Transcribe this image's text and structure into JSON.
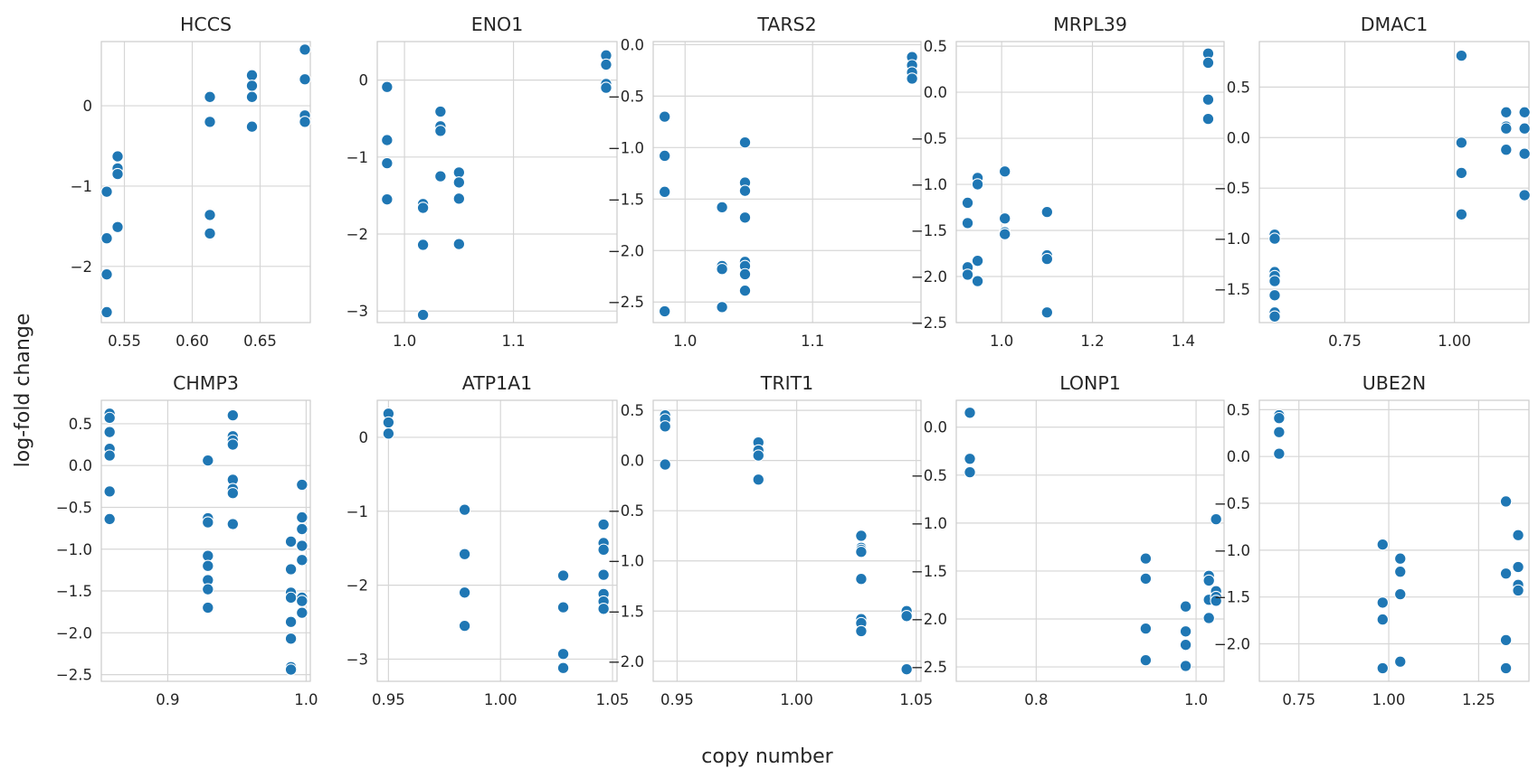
{
  "figure": {
    "xlabel": "copy number",
    "ylabel": "log-fold change"
  },
  "chart_data": [
    {
      "type": "scatter",
      "title": "HCCS",
      "xlim": [
        0.533,
        0.687
      ],
      "ylim": [
        -2.7,
        0.8
      ],
      "xticks": [
        {
          "v": 0.55,
          "label": "0.55"
        },
        {
          "v": 0.6,
          "label": "0.60"
        },
        {
          "v": 0.65,
          "label": "0.65"
        }
      ],
      "yticks": [
        {
          "v": -2,
          "label": "−2"
        },
        {
          "v": -1,
          "label": "−1"
        },
        {
          "v": 0,
          "label": "0"
        }
      ],
      "points": [
        [
          0.537,
          -1.07
        ],
        [
          0.537,
          -1.65
        ],
        [
          0.537,
          -2.1
        ],
        [
          0.537,
          -2.57
        ],
        [
          0.545,
          -0.63
        ],
        [
          0.545,
          -0.78
        ],
        [
          0.545,
          -0.85
        ],
        [
          0.545,
          -1.51
        ],
        [
          0.613,
          0.11
        ],
        [
          0.613,
          -0.2
        ],
        [
          0.613,
          -1.36
        ],
        [
          0.613,
          -1.59
        ],
        [
          0.644,
          0.38
        ],
        [
          0.644,
          0.25
        ],
        [
          0.644,
          0.11
        ],
        [
          0.644,
          -0.26
        ],
        [
          0.683,
          0.7
        ],
        [
          0.683,
          0.33
        ],
        [
          0.683,
          -0.12
        ],
        [
          0.683,
          -0.2
        ]
      ]
    },
    {
      "type": "scatter",
      "title": "ENO1",
      "xlim": [
        0.975,
        1.195
      ],
      "ylim": [
        -3.15,
        0.5
      ],
      "xticks": [
        {
          "v": 1.0,
          "label": "1.0"
        },
        {
          "v": 1.1,
          "label": "1.1"
        }
      ],
      "yticks": [
        {
          "v": -3,
          "label": "−3"
        },
        {
          "v": -2,
          "label": "−2"
        },
        {
          "v": -1,
          "label": "−1"
        },
        {
          "v": 0,
          "label": "0"
        }
      ],
      "points": [
        [
          0.984,
          -0.09
        ],
        [
          0.984,
          -0.78
        ],
        [
          0.984,
          -1.08
        ],
        [
          0.984,
          -1.55
        ],
        [
          1.017,
          -1.61
        ],
        [
          1.017,
          -1.66
        ],
        [
          1.017,
          -2.14
        ],
        [
          1.017,
          -3.05
        ],
        [
          1.033,
          -0.41
        ],
        [
          1.033,
          -0.6
        ],
        [
          1.033,
          -0.66
        ],
        [
          1.033,
          -1.25
        ],
        [
          1.05,
          -1.2
        ],
        [
          1.05,
          -1.33
        ],
        [
          1.05,
          -1.54
        ],
        [
          1.05,
          -2.13
        ],
        [
          1.185,
          0.32
        ],
        [
          1.185,
          0.2
        ],
        [
          1.185,
          -0.05
        ],
        [
          1.185,
          -0.1
        ]
      ]
    },
    {
      "type": "scatter",
      "title": "TARS2",
      "xlim": [
        0.975,
        1.185
      ],
      "ylim": [
        -2.7,
        0.03
      ],
      "xticks": [
        {
          "v": 1.0,
          "label": "1.0"
        },
        {
          "v": 1.1,
          "label": "1.1"
        }
      ],
      "yticks": [
        {
          "v": -2.5,
          "label": "−2.5"
        },
        {
          "v": -2.0,
          "label": "−2.0"
        },
        {
          "v": -1.5,
          "label": "−1.5"
        },
        {
          "v": -1.0,
          "label": "−1.0"
        },
        {
          "v": -0.5,
          "label": "−0.5"
        },
        {
          "v": 0.0,
          "label": "0.0"
        }
      ],
      "points": [
        [
          0.984,
          -0.7
        ],
        [
          0.984,
          -1.08
        ],
        [
          0.984,
          -1.43
        ],
        [
          0.984,
          -2.59
        ],
        [
          1.029,
          -1.58
        ],
        [
          1.029,
          -2.15
        ],
        [
          1.029,
          -2.18
        ],
        [
          1.029,
          -2.55
        ],
        [
          1.047,
          -0.95
        ],
        [
          1.047,
          -1.34
        ],
        [
          1.047,
          -1.42
        ],
        [
          1.047,
          -1.68
        ],
        [
          1.047,
          -2.11
        ],
        [
          1.047,
          -2.15
        ],
        [
          1.047,
          -2.23
        ],
        [
          1.047,
          -2.39
        ],
        [
          1.178,
          -0.12
        ],
        [
          1.178,
          -0.2
        ],
        [
          1.178,
          -0.27
        ],
        [
          1.178,
          -0.33
        ]
      ]
    },
    {
      "type": "scatter",
      "title": "MRPL39",
      "xlim": [
        0.9,
        1.49
      ],
      "ylim": [
        -2.5,
        0.55
      ],
      "xticks": [
        {
          "v": 1.0,
          "label": "1.0"
        },
        {
          "v": 1.2,
          "label": "1.2"
        },
        {
          "v": 1.4,
          "label": "1.4"
        }
      ],
      "yticks": [
        {
          "v": -2.5,
          "label": "−2.5"
        },
        {
          "v": -2.0,
          "label": "−2.0"
        },
        {
          "v": -1.5,
          "label": "−1.5"
        },
        {
          "v": -1.0,
          "label": "−1.0"
        },
        {
          "v": -0.5,
          "label": "−0.5"
        },
        {
          "v": 0.0,
          "label": "0.0"
        },
        {
          "v": 0.5,
          "label": "0.5"
        }
      ],
      "points": [
        [
          0.925,
          -1.2
        ],
        [
          0.925,
          -1.42
        ],
        [
          0.925,
          -1.9
        ],
        [
          0.925,
          -1.98
        ],
        [
          0.947,
          -0.93
        ],
        [
          0.947,
          -1.0
        ],
        [
          0.947,
          -1.83
        ],
        [
          0.947,
          -2.05
        ],
        [
          1.007,
          -0.86
        ],
        [
          1.007,
          -1.37
        ],
        [
          1.007,
          -1.52
        ],
        [
          1.007,
          -1.54
        ],
        [
          1.1,
          -1.3
        ],
        [
          1.1,
          -1.77
        ],
        [
          1.1,
          -1.81
        ],
        [
          1.1,
          -2.39
        ],
        [
          1.455,
          0.42
        ],
        [
          1.455,
          0.32
        ],
        [
          1.455,
          -0.08
        ],
        [
          1.455,
          -0.29
        ]
      ]
    },
    {
      "type": "scatter",
      "title": "DMAC1",
      "xlim": [
        0.555,
        1.17
      ],
      "ylim": [
        -1.83,
        0.95
      ],
      "xticks": [
        {
          "v": 0.75,
          "label": "0.75"
        },
        {
          "v": 1.0,
          "label": "1.00"
        }
      ],
      "yticks": [
        {
          "v": -1.5,
          "label": "−1.5"
        },
        {
          "v": -1.0,
          "label": "−1.0"
        },
        {
          "v": -0.5,
          "label": "−0.5"
        },
        {
          "v": 0.0,
          "label": "0.0"
        },
        {
          "v": 0.5,
          "label": "0.5"
        }
      ],
      "points": [
        [
          0.59,
          -0.96
        ],
        [
          0.59,
          -1.0
        ],
        [
          0.59,
          -1.33
        ],
        [
          0.59,
          -1.37
        ],
        [
          0.59,
          -1.42
        ],
        [
          0.59,
          -1.56
        ],
        [
          0.59,
          -1.73
        ],
        [
          0.59,
          -1.77
        ],
        [
          1.016,
          0.81
        ],
        [
          1.016,
          -0.05
        ],
        [
          1.016,
          -0.35
        ],
        [
          1.016,
          -0.76
        ],
        [
          1.118,
          0.25
        ],
        [
          1.118,
          0.11
        ],
        [
          1.118,
          0.09
        ],
        [
          1.118,
          -0.12
        ],
        [
          1.16,
          0.25
        ],
        [
          1.16,
          0.09
        ],
        [
          1.16,
          -0.16
        ],
        [
          1.16,
          -0.57
        ]
      ]
    },
    {
      "type": "scatter",
      "title": "CHMP3",
      "xlim": [
        0.852,
        1.003
      ],
      "ylim": [
        -2.58,
        0.78
      ],
      "xticks": [
        {
          "v": 0.9,
          "label": "0.9"
        },
        {
          "v": 1.0,
          "label": "1.0"
        }
      ],
      "yticks": [
        {
          "v": -2.5,
          "label": "−2.5"
        },
        {
          "v": -2.0,
          "label": "−2.0"
        },
        {
          "v": -1.5,
          "label": "−1.5"
        },
        {
          "v": -1.0,
          "label": "−1.0"
        },
        {
          "v": -0.5,
          "label": "−0.5"
        },
        {
          "v": 0.0,
          "label": "0.0"
        },
        {
          "v": 0.5,
          "label": "0.5"
        }
      ],
      "points": [
        [
          0.858,
          0.62
        ],
        [
          0.858,
          0.57
        ],
        [
          0.858,
          0.4
        ],
        [
          0.858,
          0.2
        ],
        [
          0.858,
          0.12
        ],
        [
          0.858,
          -0.31
        ],
        [
          0.858,
          -0.64
        ],
        [
          0.929,
          0.06
        ],
        [
          0.929,
          -0.63
        ],
        [
          0.929,
          -0.68
        ],
        [
          0.929,
          -1.08
        ],
        [
          0.929,
          -1.2
        ],
        [
          0.929,
          -1.37
        ],
        [
          0.929,
          -1.48
        ],
        [
          0.929,
          -1.7
        ],
        [
          0.947,
          0.6
        ],
        [
          0.947,
          0.35
        ],
        [
          0.947,
          0.3
        ],
        [
          0.947,
          0.25
        ],
        [
          0.947,
          -0.17
        ],
        [
          0.947,
          -0.28
        ],
        [
          0.947,
          -0.33
        ],
        [
          0.947,
          -0.7
        ],
        [
          0.989,
          -0.91
        ],
        [
          0.989,
          -1.24
        ],
        [
          0.989,
          -1.52
        ],
        [
          0.989,
          -1.58
        ],
        [
          0.989,
          -1.87
        ],
        [
          0.989,
          -2.07
        ],
        [
          0.989,
          -2.41
        ],
        [
          0.989,
          -2.44
        ],
        [
          0.997,
          -0.23
        ],
        [
          0.997,
          -0.62
        ],
        [
          0.997,
          -0.76
        ],
        [
          0.997,
          -0.96
        ],
        [
          0.997,
          -1.13
        ],
        [
          0.997,
          -1.58
        ],
        [
          0.997,
          -1.62
        ],
        [
          0.997,
          -1.76
        ]
      ]
    },
    {
      "type": "scatter",
      "title": "ATP1A1",
      "xlim": [
        0.945,
        1.052
      ],
      "ylim": [
        -3.3,
        0.5
      ],
      "xticks": [
        {
          "v": 0.95,
          "label": "0.95"
        },
        {
          "v": 1.0,
          "label": "1.00"
        },
        {
          "v": 1.05,
          "label": "1.05"
        }
      ],
      "yticks": [
        {
          "v": -3,
          "label": "−3"
        },
        {
          "v": -2,
          "label": "−2"
        },
        {
          "v": -1,
          "label": "−1"
        },
        {
          "v": 0,
          "label": "0"
        }
      ],
      "points": [
        [
          0.95,
          0.32
        ],
        [
          0.95,
          0.2
        ],
        [
          0.95,
          0.05
        ],
        [
          0.984,
          -0.98
        ],
        [
          0.984,
          -1.58
        ],
        [
          0.984,
          -2.1
        ],
        [
          0.984,
          -2.55
        ],
        [
          1.028,
          -1.87
        ],
        [
          1.028,
          -2.3
        ],
        [
          1.028,
          -2.93
        ],
        [
          1.028,
          -3.12
        ],
        [
          1.046,
          -1.18
        ],
        [
          1.046,
          -1.43
        ],
        [
          1.046,
          -1.52
        ],
        [
          1.046,
          -1.86
        ],
        [
          1.046,
          -2.12
        ],
        [
          1.046,
          -2.22
        ],
        [
          1.046,
          -2.32
        ]
      ]
    },
    {
      "type": "scatter",
      "title": "TRIT1",
      "xlim": [
        0.94,
        1.052
      ],
      "ylim": [
        -2.2,
        0.6
      ],
      "xticks": [
        {
          "v": 0.95,
          "label": "0.95"
        },
        {
          "v": 1.0,
          "label": "1.00"
        },
        {
          "v": 1.05,
          "label": "1.05"
        }
      ],
      "yticks": [
        {
          "v": -2.0,
          "label": "−2.0"
        },
        {
          "v": -1.5,
          "label": "−1.5"
        },
        {
          "v": -1.0,
          "label": "−1.0"
        },
        {
          "v": -0.5,
          "label": "−0.5"
        },
        {
          "v": 0.0,
          "label": "0.0"
        },
        {
          "v": 0.5,
          "label": "0.5"
        }
      ],
      "points": [
        [
          0.945,
          0.45
        ],
        [
          0.945,
          0.41
        ],
        [
          0.945,
          0.34
        ],
        [
          0.945,
          -0.04
        ],
        [
          0.984,
          0.18
        ],
        [
          0.984,
          0.1
        ],
        [
          0.984,
          0.05
        ],
        [
          0.984,
          -0.19
        ],
        [
          1.027,
          -0.75
        ],
        [
          1.027,
          -0.87
        ],
        [
          1.027,
          -0.89
        ],
        [
          1.027,
          -0.91
        ],
        [
          1.027,
          -1.18
        ],
        [
          1.027,
          -1.58
        ],
        [
          1.027,
          -1.62
        ],
        [
          1.027,
          -1.7
        ],
        [
          1.046,
          -1.5
        ],
        [
          1.046,
          -1.55
        ],
        [
          1.046,
          -2.08
        ]
      ]
    },
    {
      "type": "scatter",
      "title": "LONP1",
      "xlim": [
        0.7,
        1.035
      ],
      "ylim": [
        -2.65,
        0.28
      ],
      "xticks": [
        {
          "v": 0.8,
          "label": "0.8"
        },
        {
          "v": 1.0,
          "label": "1.0"
        }
      ],
      "yticks": [
        {
          "v": -2.5,
          "label": "−2.5"
        },
        {
          "v": -2.0,
          "label": "−2.0"
        },
        {
          "v": -1.5,
          "label": "−1.5"
        },
        {
          "v": -1.0,
          "label": "−1.0"
        },
        {
          "v": -0.5,
          "label": "−0.5"
        },
        {
          "v": 0.0,
          "label": "0.0"
        }
      ],
      "points": [
        [
          0.717,
          0.15
        ],
        [
          0.717,
          -0.33
        ],
        [
          0.717,
          -0.47
        ],
        [
          0.937,
          -1.37
        ],
        [
          0.937,
          -1.58
        ],
        [
          0.937,
          -2.1
        ],
        [
          0.937,
          -2.43
        ],
        [
          0.987,
          -1.87
        ],
        [
          0.987,
          -2.13
        ],
        [
          0.987,
          -2.27
        ],
        [
          0.987,
          -2.49
        ],
        [
          1.016,
          -1.55
        ],
        [
          1.016,
          -1.6
        ],
        [
          1.016,
          -1.8
        ],
        [
          1.016,
          -1.99
        ],
        [
          1.025,
          -0.96
        ],
        [
          1.025,
          -1.71
        ],
        [
          1.025,
          -1.77
        ],
        [
          1.025,
          -1.81
        ]
      ]
    },
    {
      "type": "scatter",
      "title": "UBE2N",
      "xlim": [
        0.64,
        1.39
      ],
      "ylim": [
        -2.4,
        0.6
      ],
      "xticks": [
        {
          "v": 0.75,
          "label": "0.75"
        },
        {
          "v": 1.0,
          "label": "1.00"
        },
        {
          "v": 1.25,
          "label": "1.25"
        }
      ],
      "yticks": [
        {
          "v": -2.0,
          "label": "−2.0"
        },
        {
          "v": -1.5,
          "label": "−1.5"
        },
        {
          "v": -1.0,
          "label": "−1.0"
        },
        {
          "v": -0.5,
          "label": "−0.5"
        },
        {
          "v": 0.0,
          "label": "0.0"
        },
        {
          "v": 0.5,
          "label": "0.5"
        }
      ],
      "points": [
        [
          0.695,
          0.44
        ],
        [
          0.695,
          0.41
        ],
        [
          0.695,
          0.26
        ],
        [
          0.695,
          0.03
        ],
        [
          0.983,
          -0.94
        ],
        [
          0.983,
          -1.56
        ],
        [
          0.983,
          -1.74
        ],
        [
          0.983,
          -2.26
        ],
        [
          1.032,
          -1.09
        ],
        [
          1.032,
          -1.23
        ],
        [
          1.032,
          -1.47
        ],
        [
          1.032,
          -2.19
        ],
        [
          1.326,
          -0.48
        ],
        [
          1.326,
          -1.25
        ],
        [
          1.326,
          -1.96
        ],
        [
          1.326,
          -2.26
        ],
        [
          1.36,
          -0.84
        ],
        [
          1.36,
          -1.18
        ],
        [
          1.36,
          -1.37
        ],
        [
          1.36,
          -1.43
        ]
      ]
    }
  ]
}
